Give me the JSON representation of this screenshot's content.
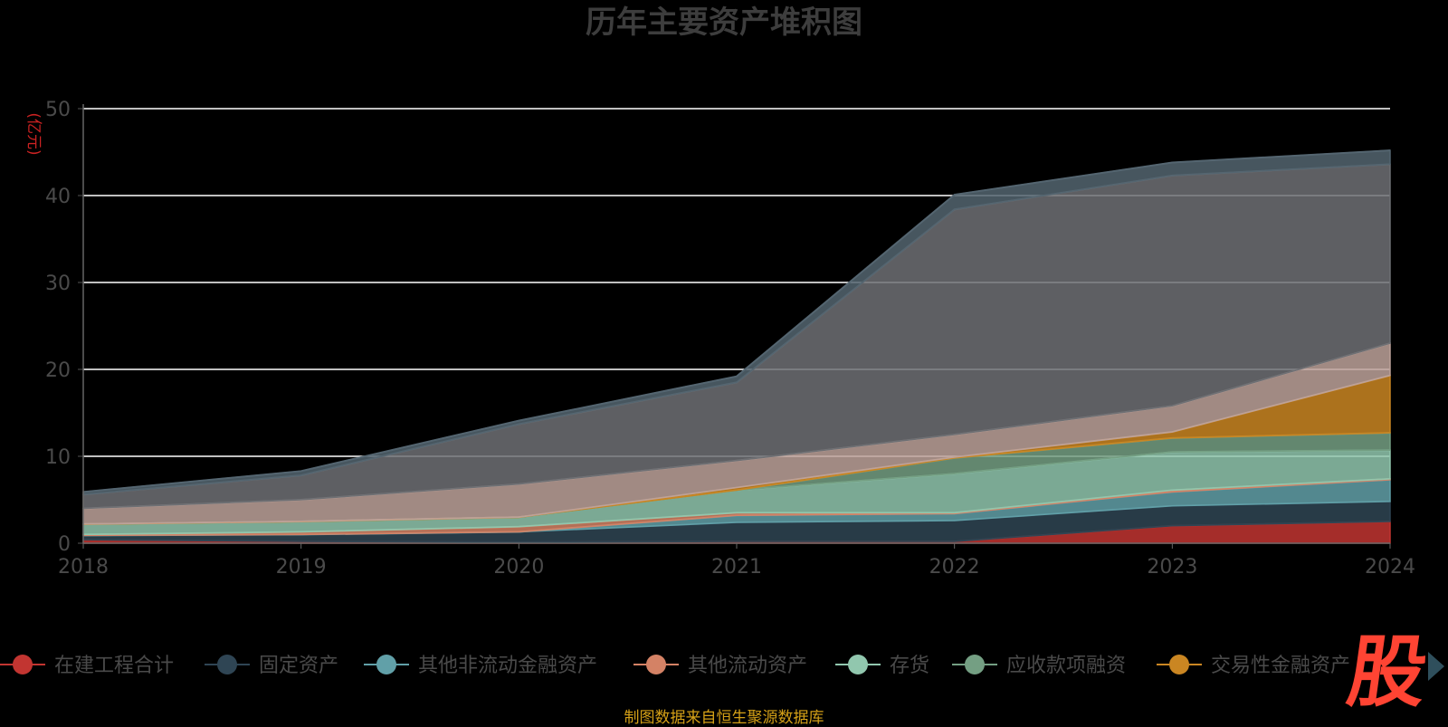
{
  "chart_data": {
    "type": "area",
    "title": "历年主要资产堆积图",
    "ylabel": "(亿元)",
    "xlabel": "",
    "x": [
      "2018",
      "2019",
      "2020",
      "2021",
      "2022",
      "2023",
      "2024"
    ],
    "ylim": [
      0,
      50
    ],
    "yticks": [
      0,
      10,
      20,
      30,
      40,
      50
    ],
    "grid": true,
    "legend_position": "bottom",
    "stacked": true,
    "series": [
      {
        "name": "在建工程合计",
        "color": "#c23531",
        "values": [
          0.4,
          0.2,
          0.1,
          0.2,
          0.2,
          2.0,
          2.5
        ]
      },
      {
        "name": "固定资产",
        "color": "#2f4554",
        "values": [
          0.5,
          0.8,
          1.2,
          2.2,
          2.4,
          2.3,
          2.3
        ]
      },
      {
        "name": "其他非流动金融资产",
        "color": "#61a0a8",
        "values": [
          0.0,
          0.0,
          0.0,
          0.8,
          0.8,
          1.6,
          2.5
        ]
      },
      {
        "name": "其他流动资产",
        "color": "#d48265",
        "values": [
          0.1,
          0.3,
          0.6,
          0.3,
          0.1,
          0.2,
          0.1
        ]
      },
      {
        "name": "存货",
        "color": "#91c7ae",
        "values": [
          1.2,
          1.2,
          1.1,
          2.6,
          4.5,
          4.4,
          3.3
        ]
      },
      {
        "name": "应收款项融资",
        "color": "#749f83",
        "values": [
          0.0,
          0.0,
          0.0,
          0.0,
          1.8,
          1.6,
          2.0
        ]
      },
      {
        "name": "交易性金融资产",
        "color": "#ca8622",
        "values": [
          0.0,
          0.0,
          0.0,
          0.3,
          0.1,
          0.7,
          6.6
        ]
      },
      {
        "color": "#bda29a",
        "values": [
          1.8,
          2.5,
          3.8,
          3.1,
          2.6,
          3.0,
          3.7
        ]
      },
      {
        "color": "#6e7074",
        "values": [
          1.6,
          2.8,
          6.9,
          9.0,
          25.9,
          26.5,
          20.6
        ]
      },
      {
        "color": "#546570",
        "values": [
          0.3,
          0.5,
          0.4,
          0.7,
          1.7,
          1.5,
          1.6
        ]
      }
    ]
  },
  "source_text": "制图数据来自恒生聚源数据库",
  "watermark_text": "股"
}
